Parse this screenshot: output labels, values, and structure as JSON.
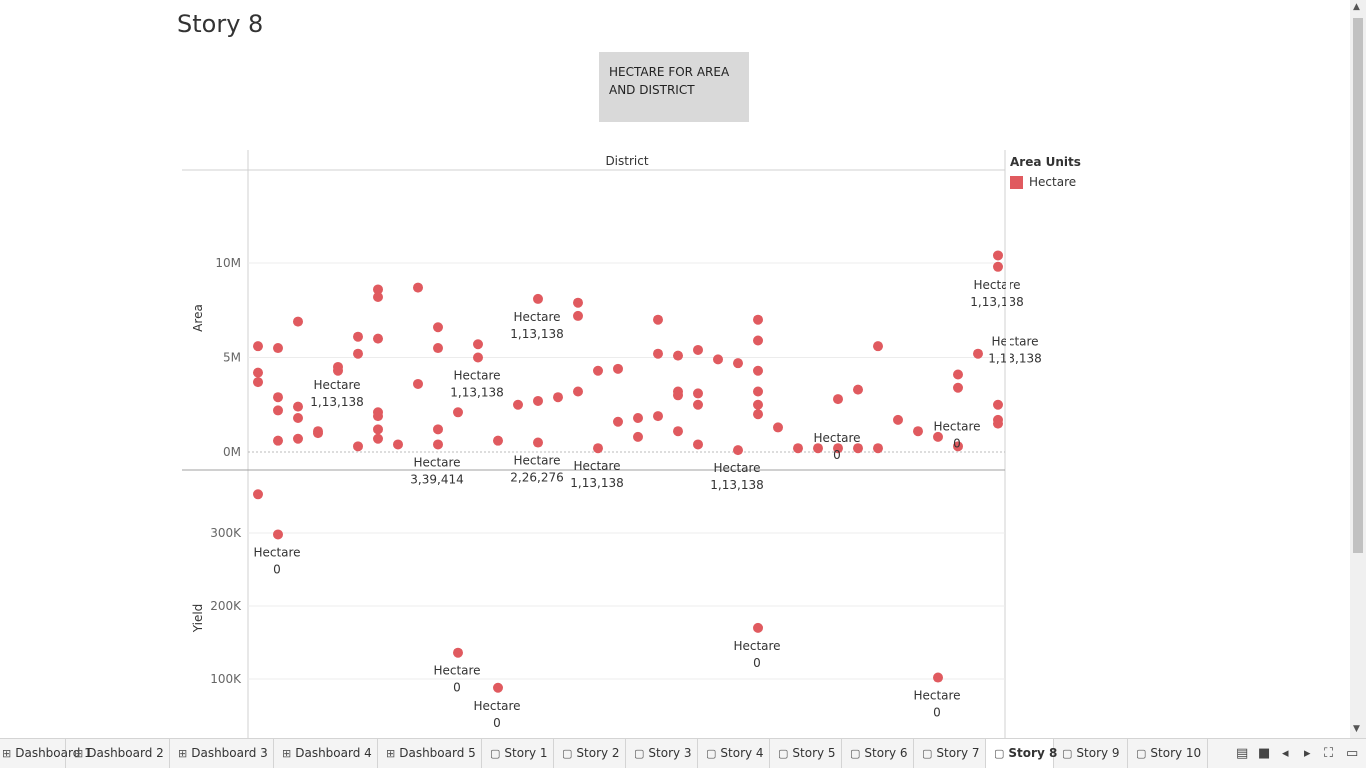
{
  "story": {
    "title": "Story 8",
    "caption": "HECTARE FOR AREA AND DISTRICT"
  },
  "legend": {
    "title": "Area Units",
    "items": [
      {
        "label": "Hectare",
        "color": "#e05a5f"
      }
    ]
  },
  "chart_data": {
    "type": "scatter",
    "column_header": "District",
    "mark_color": "#e05a5f",
    "panes": [
      {
        "ylabel": "Area",
        "ticks": [
          {
            "v": 0,
            "label": "0M"
          },
          {
            "v": 5000000,
            "label": "5M"
          },
          {
            "v": 10000000,
            "label": "10M"
          }
        ],
        "points": [
          [
            1,
            5.6
          ],
          [
            1,
            4.2
          ],
          [
            1,
            3.7
          ],
          [
            2,
            5.5
          ],
          [
            2,
            2.9
          ],
          [
            2,
            2.2
          ],
          [
            2,
            0.6
          ],
          [
            3,
            6.9
          ],
          [
            3,
            2.4
          ],
          [
            3,
            1.8
          ],
          [
            3,
            0.7
          ],
          [
            4,
            1.1
          ],
          [
            4,
            1.0
          ],
          [
            5,
            4.5
          ],
          [
            5,
            4.3
          ],
          [
            6,
            6.1
          ],
          [
            6,
            5.2
          ],
          [
            6,
            0.3
          ],
          [
            7,
            8.6
          ],
          [
            7,
            8.2
          ],
          [
            7,
            6.0
          ],
          [
            7,
            2.1
          ],
          [
            7,
            1.9
          ],
          [
            7,
            1.2
          ],
          [
            7,
            0.7
          ],
          [
            8,
            0.4
          ],
          [
            9,
            8.7
          ],
          [
            9,
            3.6
          ],
          [
            10,
            6.6
          ],
          [
            10,
            5.5
          ],
          [
            10,
            1.2
          ],
          [
            10,
            0.4
          ],
          [
            11,
            2.1
          ],
          [
            12,
            5.7
          ],
          [
            12,
            5.0
          ],
          [
            13,
            0.6
          ],
          [
            14,
            2.5
          ],
          [
            15,
            8.1
          ],
          [
            15,
            2.7
          ],
          [
            15,
            0.5
          ],
          [
            16,
            2.9
          ],
          [
            17,
            7.9
          ],
          [
            17,
            7.2
          ],
          [
            17,
            3.2
          ],
          [
            18,
            4.3
          ],
          [
            18,
            0.2
          ],
          [
            19,
            4.4
          ],
          [
            19,
            1.6
          ],
          [
            20,
            1.8
          ],
          [
            20,
            0.8
          ],
          [
            21,
            7.0
          ],
          [
            21,
            5.2
          ],
          [
            21,
            1.9
          ],
          [
            22,
            5.1
          ],
          [
            22,
            3.2
          ],
          [
            22,
            3.0
          ],
          [
            22,
            1.1
          ],
          [
            23,
            5.4
          ],
          [
            23,
            3.1
          ],
          [
            23,
            2.5
          ],
          [
            23,
            0.4
          ],
          [
            24,
            4.9
          ],
          [
            25,
            4.7
          ],
          [
            25,
            0.1
          ],
          [
            26,
            7.0
          ],
          [
            26,
            5.9
          ],
          [
            26,
            4.3
          ],
          [
            26,
            3.2
          ],
          [
            26,
            2.5
          ],
          [
            26,
            2.0
          ],
          [
            27,
            1.3
          ],
          [
            28,
            0.2
          ],
          [
            29,
            0.2
          ],
          [
            30,
            2.8
          ],
          [
            30,
            0.2
          ],
          [
            31,
            3.3
          ],
          [
            31,
            0.2
          ],
          [
            32,
            5.6
          ],
          [
            32,
            0.2
          ],
          [
            33,
            1.7
          ],
          [
            34,
            1.1
          ],
          [
            35,
            0.8
          ],
          [
            36,
            4.1
          ],
          [
            36,
            3.4
          ],
          [
            36,
            0.3
          ],
          [
            37,
            5.2
          ],
          [
            38,
            10.4
          ],
          [
            38,
            9.8
          ],
          [
            38,
            2.5
          ],
          [
            38,
            1.7
          ],
          [
            38,
            1.5
          ]
        ],
        "labels": [
          {
            "x": 15,
            "y": 8.1,
            "text": [
              "Hectare",
              "1,13,138"
            ]
          },
          {
            "x": 5,
            "y": 4.5,
            "text": [
              "Hectare",
              "1,13,138"
            ]
          },
          {
            "x": 12,
            "y": 5.0,
            "text": [
              "Hectare",
              "1,13,138"
            ]
          },
          {
            "x": 10,
            "y": 0.4,
            "text": [
              "Hectare",
              "3,39,414"
            ]
          },
          {
            "x": 15,
            "y": 0.5,
            "text": [
              "Hectare",
              "2,26,276"
            ]
          },
          {
            "x": 18,
            "y": 0.2,
            "text": [
              "Hectare",
              "1,13,138"
            ]
          },
          {
            "x": 25,
            "y": 0.1,
            "text": [
              "Hectare",
              "1,13,138"
            ]
          },
          {
            "x": 30,
            "y": 1.7,
            "text": [
              "Hectare",
              "0"
            ]
          },
          {
            "x": 36,
            "y": 2.3,
            "text": [
              "Hectare",
              "0"
            ]
          },
          {
            "x": 38,
            "y": 9.8,
            "text": [
              "Hectare",
              "1,13,138"
            ]
          },
          {
            "x": 38.9,
            "y": 6.8,
            "text": [
              "Hectare",
              "1,13,138"
            ]
          }
        ]
      },
      {
        "ylabel": "Yield",
        "ticks": [
          {
            "v": 100000,
            "label": "100K"
          },
          {
            "v": 200000,
            "label": "200K"
          },
          {
            "v": 300000,
            "label": "300K"
          }
        ],
        "points": [
          [
            1,
            353
          ],
          [
            2,
            298
          ],
          [
            11,
            136
          ],
          [
            13,
            88
          ],
          [
            26,
            170
          ],
          [
            35,
            102
          ]
        ],
        "labels": [
          {
            "x": 2,
            "y": 298,
            "text": [
              "Hectare",
              "0"
            ]
          },
          {
            "x": 11,
            "y": 136,
            "text": [
              "Hectare",
              "0"
            ]
          },
          {
            "x": 13,
            "y": 88,
            "text": [
              "Hectare",
              "0"
            ]
          },
          {
            "x": 26,
            "y": 170,
            "text": [
              "Hectare",
              "0"
            ]
          },
          {
            "x": 35,
            "y": 102,
            "text": [
              "Hectare",
              "0"
            ]
          }
        ]
      }
    ]
  },
  "tabs": [
    {
      "label": "Dashboard 1",
      "icon": "grid-icon",
      "active": false
    },
    {
      "label": "Dashboard 2",
      "icon": "grid-icon",
      "active": false
    },
    {
      "label": "Dashboard 3",
      "icon": "grid-icon",
      "active": false
    },
    {
      "label": "Dashboard 4",
      "icon": "grid-icon",
      "active": false
    },
    {
      "label": "Dashboard 5",
      "icon": "grid-icon",
      "active": false
    },
    {
      "label": "Story 1",
      "icon": "book-icon",
      "active": false
    },
    {
      "label": "Story 2",
      "icon": "book-icon",
      "active": false
    },
    {
      "label": "Story 3",
      "icon": "book-icon",
      "active": false
    },
    {
      "label": "Story 4",
      "icon": "book-icon",
      "active": false
    },
    {
      "label": "Story 5",
      "icon": "book-icon",
      "active": false
    },
    {
      "label": "Story 6",
      "icon": "book-icon",
      "active": false
    },
    {
      "label": "Story 7",
      "icon": "book-icon",
      "active": false
    },
    {
      "label": "Story 8",
      "icon": "book-icon",
      "active": true
    },
    {
      "label": "Story 9",
      "icon": "book-icon",
      "active": false
    },
    {
      "label": "Story 10",
      "icon": "book-icon",
      "active": false
    }
  ],
  "controls": [
    "filmstrip-icon",
    "single-view-icon",
    "prev-icon",
    "next-icon",
    "fullscreen-icon",
    "present-icon"
  ]
}
